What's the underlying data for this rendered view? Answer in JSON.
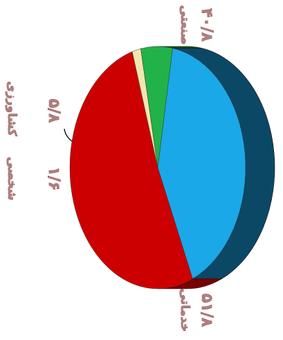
{
  "chart_data": {
    "type": "pie",
    "style": "3d",
    "orientation": "rotated-90-clockwise",
    "legend": "none",
    "slices": [
      {
        "label": "صنعتی",
        "value": 40.8,
        "value_label": "۴۰/۸",
        "color": "#1aa8e8",
        "side_color": "#0a4866"
      },
      {
        "label": "خدماتی",
        "value": 51.8,
        "value_label": "۵۱/۸",
        "color": "#cc0000",
        "side_color": "#7a0000"
      },
      {
        "label": "شخصی",
        "value": 1.6,
        "value_label": "۱/۶",
        "color": "#f2e6b0",
        "side_color": "#8a7a50"
      },
      {
        "label": "کشاورزی",
        "value": 5.8,
        "value_label": "۵/۸",
        "color": "#22b24a",
        "side_color": "#0e5a22"
      }
    ]
  }
}
